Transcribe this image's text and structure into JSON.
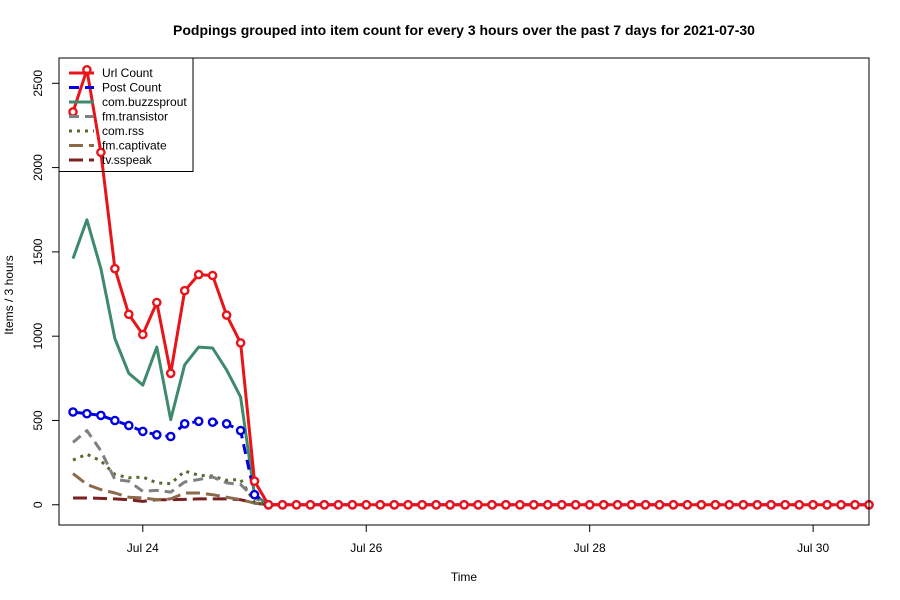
{
  "chart_data": {
    "type": "line",
    "title": "Podpings grouped into item count for every 3 hours  over the past 7 days for 2021-07-30",
    "xlabel": "Time",
    "ylabel": "Items / 3 hours",
    "x_range": [
      "2021-07-23 06:00",
      "2021-07-30 12:00"
    ],
    "ylim": [
      -120,
      2650
    ],
    "grid": false,
    "legend_position": "top-left",
    "x_tick_labels": [
      "Jul 24",
      "Jul 26",
      "Jul 28",
      "Jul 30"
    ],
    "y_tick_labels": [
      "0",
      "500",
      "1000",
      "1500",
      "2000",
      "2500"
    ],
    "x_start": "2021-07-23 09:00",
    "x_step_hours": 3,
    "series": [
      {
        "name": "Url Count",
        "color": "#e8141a",
        "line_style": "solid",
        "markers": true,
        "values": [
          2330,
          2580,
          2090,
          1400,
          1130,
          1010,
          1200,
          780,
          1270,
          1365,
          1360,
          1125,
          960,
          140,
          0,
          0,
          0,
          0,
          0,
          0,
          0,
          0,
          0,
          0,
          0,
          0,
          0,
          0,
          0,
          0,
          0,
          0,
          0,
          0,
          0,
          0,
          0,
          0,
          0,
          0,
          0,
          0,
          0,
          0,
          0,
          0,
          0,
          0,
          0,
          0,
          0,
          0,
          0,
          0,
          0,
          0,
          0,
          0
        ]
      },
      {
        "name": "Post Count",
        "color": "#0000e0",
        "line_style": "dashed",
        "markers": true,
        "values": [
          550,
          540,
          530,
          500,
          470,
          435,
          415,
          405,
          480,
          495,
          490,
          480,
          440,
          60,
          0,
          0,
          0,
          0,
          0,
          0,
          0,
          0,
          0,
          0,
          0,
          0,
          0,
          0,
          0,
          0,
          0,
          0,
          0,
          0,
          0,
          0,
          0,
          0,
          0,
          0,
          0,
          0,
          0,
          0,
          0,
          0,
          0,
          0,
          0,
          0,
          0,
          0,
          0,
          0,
          0,
          0,
          0,
          0
        ]
      },
      {
        "name": "com.buzzsprout",
        "color": "#3f8a6a",
        "line_style": "solid",
        "markers": false,
        "values": [
          1460,
          1690,
          1400,
          985,
          780,
          710,
          935,
          505,
          830,
          935,
          930,
          800,
          640,
          60,
          0,
          0
        ]
      },
      {
        "name": "fm.transistor",
        "color": "#808080",
        "line_style": "dashed",
        "markers": false,
        "values": [
          370,
          440,
          320,
          150,
          140,
          80,
          85,
          75,
          135,
          150,
          165,
          130,
          120,
          40,
          0,
          0
        ]
      },
      {
        "name": "com.rss",
        "color": "#556b2f",
        "line_style": "dotted",
        "markers": false,
        "values": [
          265,
          300,
          260,
          180,
          160,
          165,
          130,
          125,
          200,
          175,
          170,
          145,
          150,
          15,
          0,
          0
        ]
      },
      {
        "name": "fm.captivate",
        "color": "#8b6a4c",
        "line_style": "longdash",
        "markers": false,
        "values": [
          185,
          120,
          90,
          70,
          45,
          40,
          30,
          35,
          70,
          70,
          60,
          45,
          30,
          10,
          0,
          0
        ]
      },
      {
        "name": "tv.sspeak",
        "color": "#7a2020",
        "line_style": "longdash",
        "markers": false,
        "values": [
          40,
          40,
          38,
          35,
          30,
          20,
          30,
          30,
          32,
          35,
          35,
          35,
          30,
          10,
          0,
          0
        ]
      }
    ]
  }
}
